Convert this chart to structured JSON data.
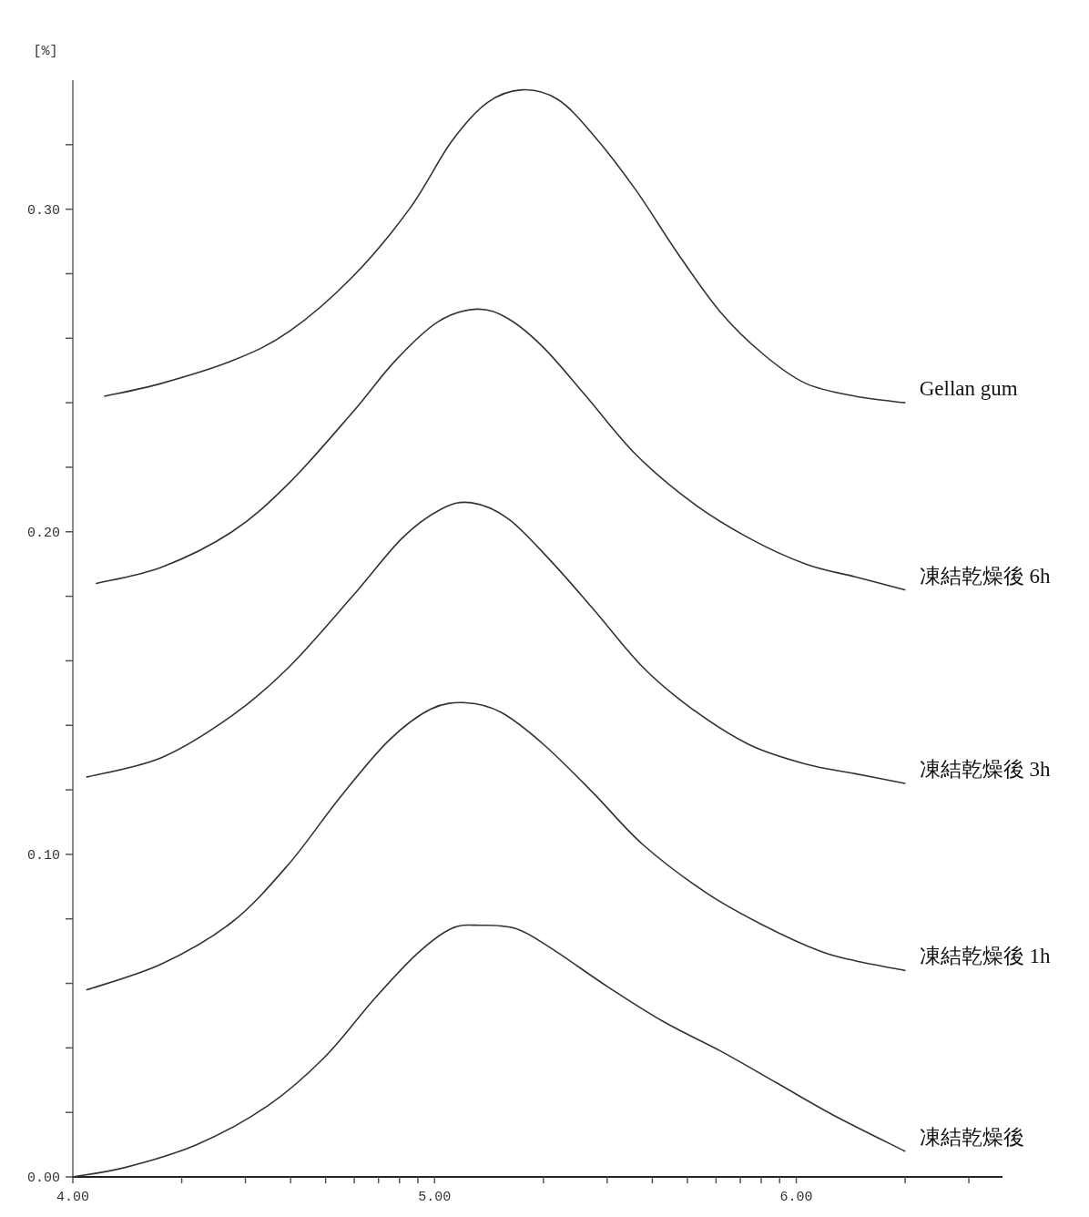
{
  "chart_data": {
    "type": "line",
    "ylabel": "[%]",
    "xlim": [
      4,
      6.57
    ],
    "ylim": [
      0,
      0.34
    ],
    "xticks": [
      {
        "value": 4,
        "label": "4.00"
      },
      {
        "value": 4.301,
        "label": null
      },
      {
        "value": 4.477,
        "label": null
      },
      {
        "value": 4.602,
        "label": null
      },
      {
        "value": 4.699,
        "label": null
      },
      {
        "value": 4.778,
        "label": null
      },
      {
        "value": 4.845,
        "label": null
      },
      {
        "value": 4.903,
        "label": null
      },
      {
        "value": 4.954,
        "label": null
      },
      {
        "value": 5,
        "label": "5.00"
      },
      {
        "value": 5.301,
        "label": null
      },
      {
        "value": 5.477,
        "label": null
      },
      {
        "value": 5.602,
        "label": null
      },
      {
        "value": 5.699,
        "label": null
      },
      {
        "value": 5.778,
        "label": null
      },
      {
        "value": 5.845,
        "label": null
      },
      {
        "value": 5.903,
        "label": null
      },
      {
        "value": 5.954,
        "label": null
      },
      {
        "value": 6,
        "label": "6.00"
      },
      {
        "value": 6.301,
        "label": null
      },
      {
        "value": 6.477,
        "label": null
      }
    ],
    "yticks": [
      {
        "value": 0,
        "label": "0.00"
      },
      {
        "value": 0.02,
        "label": null
      },
      {
        "value": 0.04,
        "label": null
      },
      {
        "value": 0.06,
        "label": null
      },
      {
        "value": 0.08,
        "label": null
      },
      {
        "value": 0.1,
        "label": "0.10"
      },
      {
        "value": 0.12,
        "label": null
      },
      {
        "value": 0.14,
        "label": null
      },
      {
        "value": 0.16,
        "label": null
      },
      {
        "value": 0.18,
        "label": null
      },
      {
        "value": 0.2,
        "label": "0.20"
      },
      {
        "value": 0.22,
        "label": null
      },
      {
        "value": 0.24,
        "label": null
      },
      {
        "value": 0.26,
        "label": null
      },
      {
        "value": 0.28,
        "label": null
      },
      {
        "value": 0.3,
        "label": "0.30"
      },
      {
        "value": 0.32,
        "label": null
      }
    ],
    "grid": false,
    "marker": "none",
    "line_style": "solid",
    "series": [
      {
        "name": "Gellan gum",
        "color": "#333333",
        "x": [
          4.088,
          4.245,
          4.44,
          4.597,
          4.773,
          4.93,
          5.047,
          5.145,
          5.243,
          5.341,
          5.439,
          5.556,
          5.674,
          5.791,
          5.909,
          6.026,
          6.163,
          6.3
        ],
        "values": [
          0.242,
          0.246,
          0.253,
          0.262,
          0.279,
          0.3,
          0.321,
          0.333,
          0.337,
          0.334,
          0.323,
          0.306,
          0.286,
          0.268,
          0.255,
          0.246,
          0.242,
          0.24
        ]
      },
      {
        "name": "凍結乾燥後 6h",
        "color": "#333333",
        "x": [
          4.065,
          4.245,
          4.44,
          4.597,
          4.773,
          4.891,
          5.008,
          5.116,
          5.204,
          5.302,
          5.419,
          5.556,
          5.713,
          5.87,
          6.026,
          6.163,
          6.3
        ],
        "values": [
          0.184,
          0.189,
          0.2,
          0.215,
          0.237,
          0.253,
          0.265,
          0.269,
          0.266,
          0.257,
          0.242,
          0.224,
          0.209,
          0.198,
          0.19,
          0.186,
          0.182
        ]
      },
      {
        "name": "凍結乾燥後 3h",
        "color": "#333333",
        "x": [
          4.039,
          4.245,
          4.44,
          4.597,
          4.773,
          4.91,
          5.018,
          5.102,
          5.204,
          5.321,
          5.439,
          5.576,
          5.713,
          5.87,
          6.026,
          6.163,
          6.3
        ],
        "values": [
          0.124,
          0.13,
          0.143,
          0.158,
          0.18,
          0.198,
          0.207,
          0.209,
          0.204,
          0.191,
          0.176,
          0.158,
          0.145,
          0.134,
          0.128,
          0.125,
          0.122
        ]
      },
      {
        "name": "凍結乾燥後 1h",
        "color": "#333333",
        "x": [
          4.039,
          4.245,
          4.44,
          4.597,
          4.734,
          4.871,
          4.989,
          5.087,
          5.184,
          5.302,
          5.439,
          5.576,
          5.752,
          5.909,
          6.065,
          6.163,
          6.3
        ],
        "values": [
          0.058,
          0.066,
          0.079,
          0.097,
          0.117,
          0.135,
          0.145,
          0.147,
          0.144,
          0.134,
          0.119,
          0.103,
          0.088,
          0.078,
          0.07,
          0.067,
          0.064
        ]
      },
      {
        "name": "凍結乾燥後",
        "color": "#333333",
        "x": [
          4.0,
          4.147,
          4.343,
          4.538,
          4.695,
          4.832,
          4.95,
          5.047,
          5.126,
          5.224,
          5.321,
          5.478,
          5.635,
          5.791,
          5.948,
          6.105,
          6.3
        ],
        "values": [
          0.0,
          0.003,
          0.01,
          0.022,
          0.037,
          0.055,
          0.069,
          0.077,
          0.078,
          0.077,
          0.071,
          0.059,
          0.048,
          0.039,
          0.029,
          0.019,
          0.008
        ]
      }
    ]
  }
}
